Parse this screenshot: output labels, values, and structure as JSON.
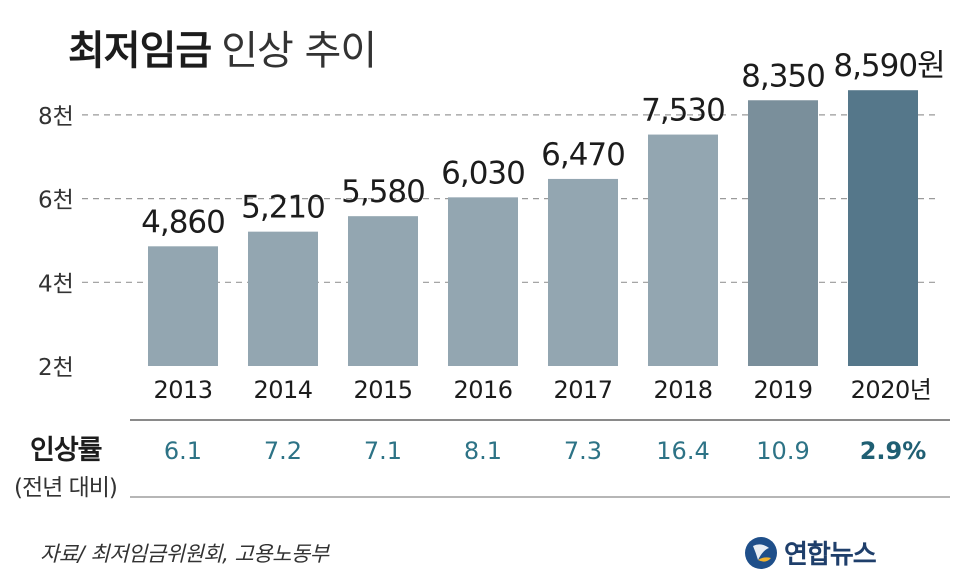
{
  "title": {
    "bold": "최저임금",
    "light": "인상 추이"
  },
  "chart_data": {
    "type": "bar",
    "title": "최저임금 인상 추이",
    "unit": "원",
    "categories": [
      "2013",
      "2014",
      "2015",
      "2016",
      "2017",
      "2018",
      "2019",
      "2020"
    ],
    "category_labels": [
      "2013",
      "2014",
      "2015",
      "2016",
      "2017",
      "2018",
      "2019",
      "2020년"
    ],
    "values": [
      4860,
      5210,
      5580,
      6030,
      6470,
      7530,
      8350,
      8590
    ],
    "value_labels": [
      "4,860",
      "5,210",
      "5,580",
      "6,030",
      "6,470",
      "7,530",
      "8,350",
      "8,590원"
    ],
    "yticks": [
      2000,
      4000,
      6000,
      8000
    ],
    "ytick_labels": [
      "2천",
      "4천",
      "6천",
      "8천"
    ],
    "ylim": [
      2000,
      8800
    ],
    "grid": true,
    "colors": [
      "#93a6b1",
      "#93a6b1",
      "#93a6b1",
      "#93a6b1",
      "#93a6b1",
      "#93a6b1",
      "#7a8f9b",
      "#55778a"
    ],
    "increase_rate": {
      "label": "인상률",
      "sublabel": "(전년 대비)",
      "values": [
        "6.1",
        "7.2",
        "7.1",
        "8.1",
        "7.3",
        "16.4",
        "10.9",
        "2.9%"
      ],
      "color": "#2d7386",
      "highlight_color": "#1f5f73"
    }
  },
  "source": "자료/ 최저임금위원회, 고용노동부",
  "logo": {
    "name": "연합뉴스"
  }
}
